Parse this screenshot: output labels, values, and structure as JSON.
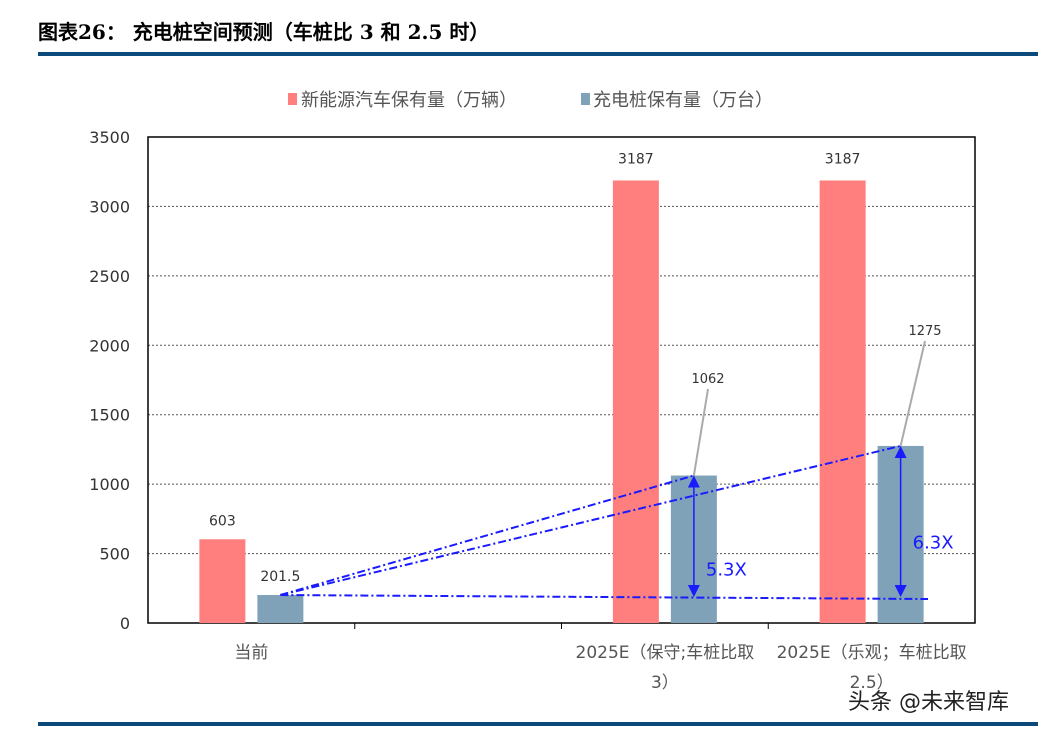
{
  "title": "图表26：  充电桩空间预测（车桩比 3 和 2.5 时）",
  "watermark": "头条 @未来智库",
  "chart_data": {
    "type": "bar",
    "categories": [
      "当前",
      "",
      "2025E（保守;车桩比取3）",
      "2025E（乐观；车桩比取2.5）"
    ],
    "category_lines": [
      [
        "当前"
      ],
      [
        ""
      ],
      [
        "2025E（保守;车桩比取",
        "3）"
      ],
      [
        "2025E（乐观；车桩比取",
        "2.5）"
      ]
    ],
    "series": [
      {
        "name": "新能源汽车保有量（万辆）",
        "color": "#ff7f7f",
        "values": [
          603,
          null,
          3187,
          3187
        ],
        "labels": [
          "603",
          "",
          "3187",
          "3187"
        ]
      },
      {
        "name": "充电桩保有量（万台）",
        "color": "#7fa2b9",
        "values": [
          201.5,
          null,
          1062,
          1275
        ],
        "labels": [
          "201.5",
          "",
          "1062",
          "1275"
        ]
      }
    ],
    "ylim": [
      0,
      3500
    ],
    "yticks": [
      0,
      500,
      1000,
      1500,
      2000,
      2500,
      3000,
      3500
    ],
    "grid": true,
    "legend": "top-center",
    "annotations": [
      {
        "text": "5.3X",
        "category": 2,
        "from": 201.5,
        "to": 1062
      },
      {
        "text": "6.3X",
        "category": 3,
        "from": 201.5,
        "to": 1275
      }
    ],
    "annotation_color": "#1a1aff"
  }
}
